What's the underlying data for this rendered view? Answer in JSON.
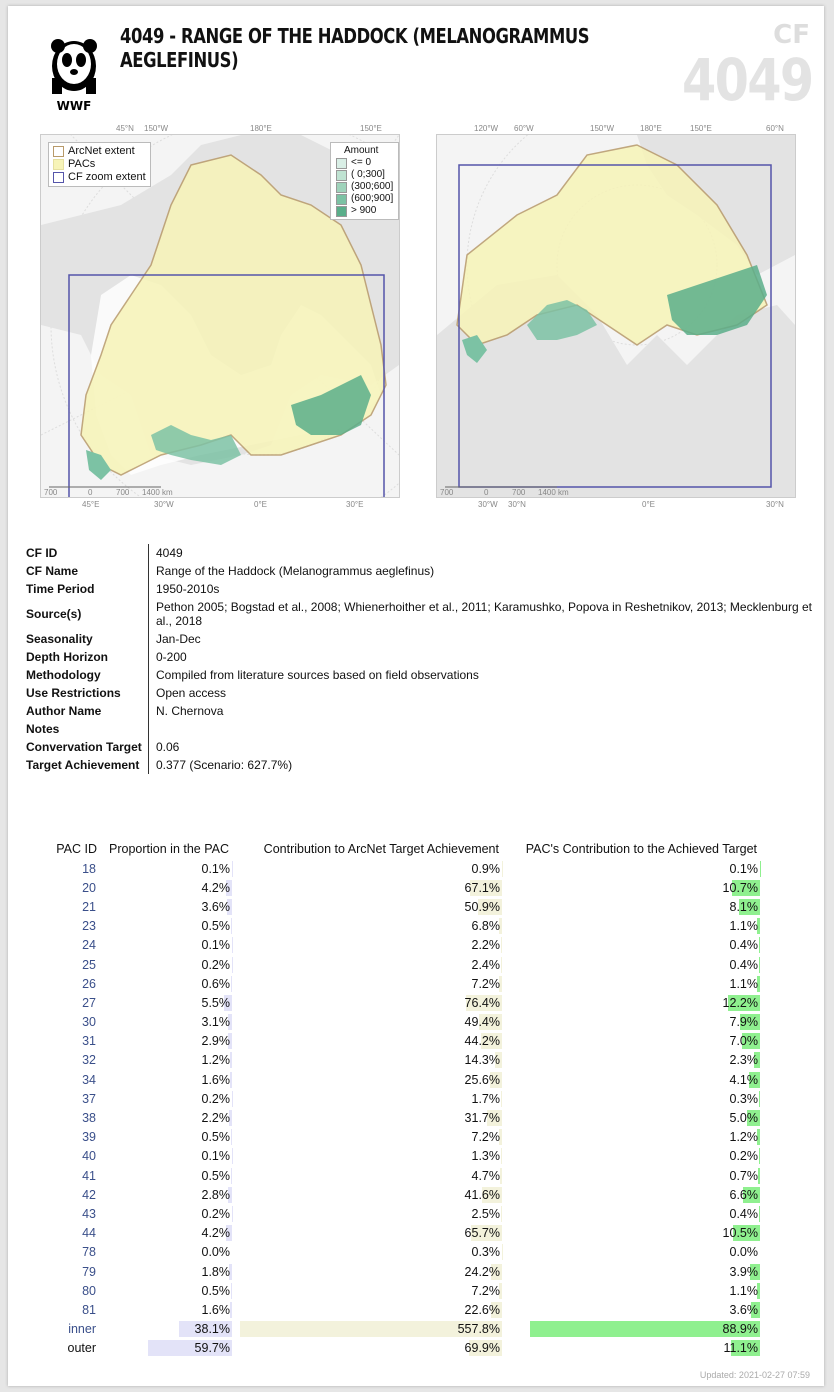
{
  "header": {
    "logo_text": "WWF",
    "title": "4049 - RANGE OF THE HADDOCK (MELANOGRAMMUS AEGLEFINUS)",
    "cf_label": "CF",
    "cf_number": "4049"
  },
  "map1": {
    "legend": [
      "ArcNet extent",
      "PACs",
      "CF zoom extent"
    ],
    "amount_title": "Amount",
    "amount_classes": [
      "<=   0",
      "(  0;300]",
      "(300;600]",
      "(600;900]",
      "> 900"
    ],
    "amount_colors": [
      "#d9efe6",
      "#bfe3d2",
      "#9fd3bb",
      "#7cc2a4",
      "#5aae8a"
    ],
    "top_labels": [
      "45°N",
      "150°W",
      "180°E",
      "150°E"
    ],
    "bottom_labels": [
      "45°E",
      "30°W",
      "0°E",
      "30°E"
    ],
    "left_labels": [
      "120°W",
      "45°N",
      "90°W",
      "45°N",
      "60°W"
    ],
    "right_labels": [
      "45°N",
      "120°E",
      "90°E",
      "45°N",
      "60°E"
    ],
    "scale": [
      "700",
      "0",
      "700",
      "1400",
      "km"
    ]
  },
  "map2": {
    "top_labels": [
      "120°W",
      "60°W",
      "150°W",
      "180°E",
      "150°E",
      "60°N"
    ],
    "bottom_labels": [
      "30°W",
      "30°N",
      "0°E",
      "30°N"
    ],
    "left_labels": [
      "90°N",
      "45°N",
      "90°W",
      "60°N",
      "30°N"
    ],
    "right_labels": [
      "60°E",
      "45°N",
      "90°E",
      "60°N",
      "30°N"
    ],
    "scale": [
      "700",
      "0",
      "700",
      "1400",
      "km"
    ]
  },
  "colors": {
    "arcnet": "#b89a6a",
    "pac": "#f7f4b8",
    "zoom": "#5555aa"
  },
  "meta": [
    {
      "k": "CF ID",
      "v": "4049"
    },
    {
      "k": "CF Name",
      "v": "Range of the Haddock (Melanogrammus aeglefinus)"
    },
    {
      "k": "Time Period",
      "v": "1950-2010s"
    },
    {
      "k": "Source(s)",
      "v": "Pethon 2005; Bogstad et al., 2008; Whienerhoither et al., 2011; Karamushko, Popova in Reshetnikov, 2013; Mecklenburg et al., 2018"
    },
    {
      "k": "Seasonality",
      "v": "Jan-Dec"
    },
    {
      "k": "Depth Horizon",
      "v": "0-200"
    },
    {
      "k": "Methodology",
      "v": "Compiled from literature sources based on field observations"
    },
    {
      "k": "Use Restrictions",
      "v": "Open access"
    },
    {
      "k": "Author Name",
      "v": "N. Chernova"
    },
    {
      "k": "Notes",
      "v": ""
    },
    {
      "k": "Convervation Target",
      "v": "0.06"
    },
    {
      "k": "Target Achievement",
      "v": "0.377 (Scenario: 627.7%)"
    }
  ],
  "table": {
    "headers": [
      "PAC ID",
      "Proportion in the PAC",
      "Contribution to ArcNet Target Achievement",
      "PAC's Contribution to the Achieved Target"
    ],
    "rows": [
      {
        "id": "18",
        "p": "0.1%",
        "c": "0.9%",
        "a": "0.1%",
        "pv": 0.1,
        "cv": 0.9,
        "av": 0.1
      },
      {
        "id": "20",
        "p": "4.2%",
        "c": "67.1%",
        "a": "10.7%",
        "pv": 4.2,
        "cv": 67.1,
        "av": 10.7
      },
      {
        "id": "21",
        "p": "3.6%",
        "c": "50.9%",
        "a": "8.1%",
        "pv": 3.6,
        "cv": 50.9,
        "av": 8.1
      },
      {
        "id": "23",
        "p": "0.5%",
        "c": "6.8%",
        "a": "1.1%",
        "pv": 0.5,
        "cv": 6.8,
        "av": 1.1
      },
      {
        "id": "24",
        "p": "0.1%",
        "c": "2.2%",
        "a": "0.4%",
        "pv": 0.1,
        "cv": 2.2,
        "av": 0.4
      },
      {
        "id": "25",
        "p": "0.2%",
        "c": "2.4%",
        "a": "0.4%",
        "pv": 0.2,
        "cv": 2.4,
        "av": 0.4
      },
      {
        "id": "26",
        "p": "0.6%",
        "c": "7.2%",
        "a": "1.1%",
        "pv": 0.6,
        "cv": 7.2,
        "av": 1.1
      },
      {
        "id": "27",
        "p": "5.5%",
        "c": "76.4%",
        "a": "12.2%",
        "pv": 5.5,
        "cv": 76.4,
        "av": 12.2
      },
      {
        "id": "30",
        "p": "3.1%",
        "c": "49.4%",
        "a": "7.9%",
        "pv": 3.1,
        "cv": 49.4,
        "av": 7.9
      },
      {
        "id": "31",
        "p": "2.9%",
        "c": "44.2%",
        "a": "7.0%",
        "pv": 2.9,
        "cv": 44.2,
        "av": 7.0
      },
      {
        "id": "32",
        "p": "1.2%",
        "c": "14.3%",
        "a": "2.3%",
        "pv": 1.2,
        "cv": 14.3,
        "av": 2.3
      },
      {
        "id": "34",
        "p": "1.6%",
        "c": "25.6%",
        "a": "4.1%",
        "pv": 1.6,
        "cv": 25.6,
        "av": 4.1
      },
      {
        "id": "37",
        "p": "0.2%",
        "c": "1.7%",
        "a": "0.3%",
        "pv": 0.2,
        "cv": 1.7,
        "av": 0.3
      },
      {
        "id": "38",
        "p": "2.2%",
        "c": "31.7%",
        "a": "5.0%",
        "pv": 2.2,
        "cv": 31.7,
        "av": 5.0
      },
      {
        "id": "39",
        "p": "0.5%",
        "c": "7.2%",
        "a": "1.2%",
        "pv": 0.5,
        "cv": 7.2,
        "av": 1.2
      },
      {
        "id": "40",
        "p": "0.1%",
        "c": "1.3%",
        "a": "0.2%",
        "pv": 0.1,
        "cv": 1.3,
        "av": 0.2
      },
      {
        "id": "41",
        "p": "0.5%",
        "c": "4.7%",
        "a": "0.7%",
        "pv": 0.5,
        "cv": 4.7,
        "av": 0.7
      },
      {
        "id": "42",
        "p": "2.8%",
        "c": "41.6%",
        "a": "6.6%",
        "pv": 2.8,
        "cv": 41.6,
        "av": 6.6
      },
      {
        "id": "43",
        "p": "0.2%",
        "c": "2.5%",
        "a": "0.4%",
        "pv": 0.2,
        "cv": 2.5,
        "av": 0.4
      },
      {
        "id": "44",
        "p": "4.2%",
        "c": "65.7%",
        "a": "10.5%",
        "pv": 4.2,
        "cv": 65.7,
        "av": 10.5
      },
      {
        "id": "78",
        "p": "0.0%",
        "c": "0.3%",
        "a": "0.0%",
        "pv": 0.0,
        "cv": 0.3,
        "av": 0.0
      },
      {
        "id": "79",
        "p": "1.8%",
        "c": "24.2%",
        "a": "3.9%",
        "pv": 1.8,
        "cv": 24.2,
        "av": 3.9
      },
      {
        "id": "80",
        "p": "0.5%",
        "c": "7.2%",
        "a": "1.1%",
        "pv": 0.5,
        "cv": 7.2,
        "av": 1.1
      },
      {
        "id": "81",
        "p": "1.6%",
        "c": "22.6%",
        "a": "3.6%",
        "pv": 1.6,
        "cv": 22.6,
        "av": 3.6
      },
      {
        "id": "inner",
        "p": "38.1%",
        "c": "557.8%",
        "a": "88.9%",
        "pv": 38.1,
        "cv": 557.8,
        "av": 88.9
      },
      {
        "id": "outer",
        "p": "59.7%",
        "c": "69.9%",
        "a": "11.1%",
        "pv": 59.7,
        "cv": 69.9,
        "av": 11.1
      }
    ]
  },
  "updated": "Updated: 2021-02-27 07:59"
}
